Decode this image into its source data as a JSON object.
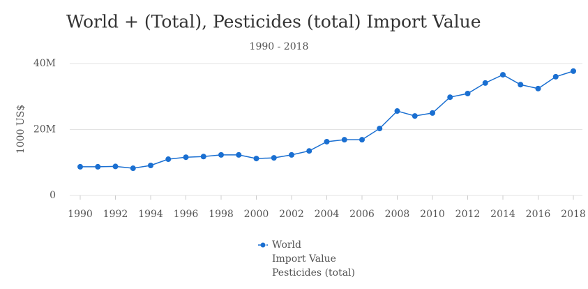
{
  "chart_data": {
    "type": "line",
    "title": "World + (Total), Pesticides (total) Import Value",
    "subtitle": "1990 - 2018",
    "y_label": "1000 US$",
    "x": [
      1990,
      1991,
      1992,
      1993,
      1994,
      1995,
      1996,
      1997,
      1998,
      1999,
      2000,
      2001,
      2002,
      2003,
      2004,
      2005,
      2006,
      2007,
      2008,
      2009,
      2010,
      2011,
      2012,
      2013,
      2014,
      2015,
      2016,
      2017,
      2018
    ],
    "series": [
      {
        "name": "World\nImport Value\nPesticides (total)",
        "color": "#1a6fd1",
        "values": [
          8700000,
          8700000,
          8800000,
          8250000,
          9100000,
          11000000,
          11600000,
          11800000,
          12300000,
          12300000,
          11200000,
          11400000,
          12300000,
          13500000,
          16300000,
          16900000,
          16900000,
          20300000,
          25600000,
          24100000,
          25000000,
          29800000,
          30900000,
          34100000,
          36600000,
          33600000,
          32400000,
          36000000,
          37700000
        ]
      }
    ],
    "xlim": [
      1990,
      2018
    ],
    "xticks": [
      1990,
      1992,
      1994,
      1996,
      1998,
      2000,
      2002,
      2004,
      2006,
      2008,
      2010,
      2012,
      2014,
      2016,
      2018
    ],
    "ylim": [
      0,
      40000000
    ],
    "yticks": [
      0,
      {
        "value": 20000000,
        "label": "20M"
      },
      {
        "value": 40000000,
        "label": "40M"
      }
    ],
    "grid": true
  }
}
